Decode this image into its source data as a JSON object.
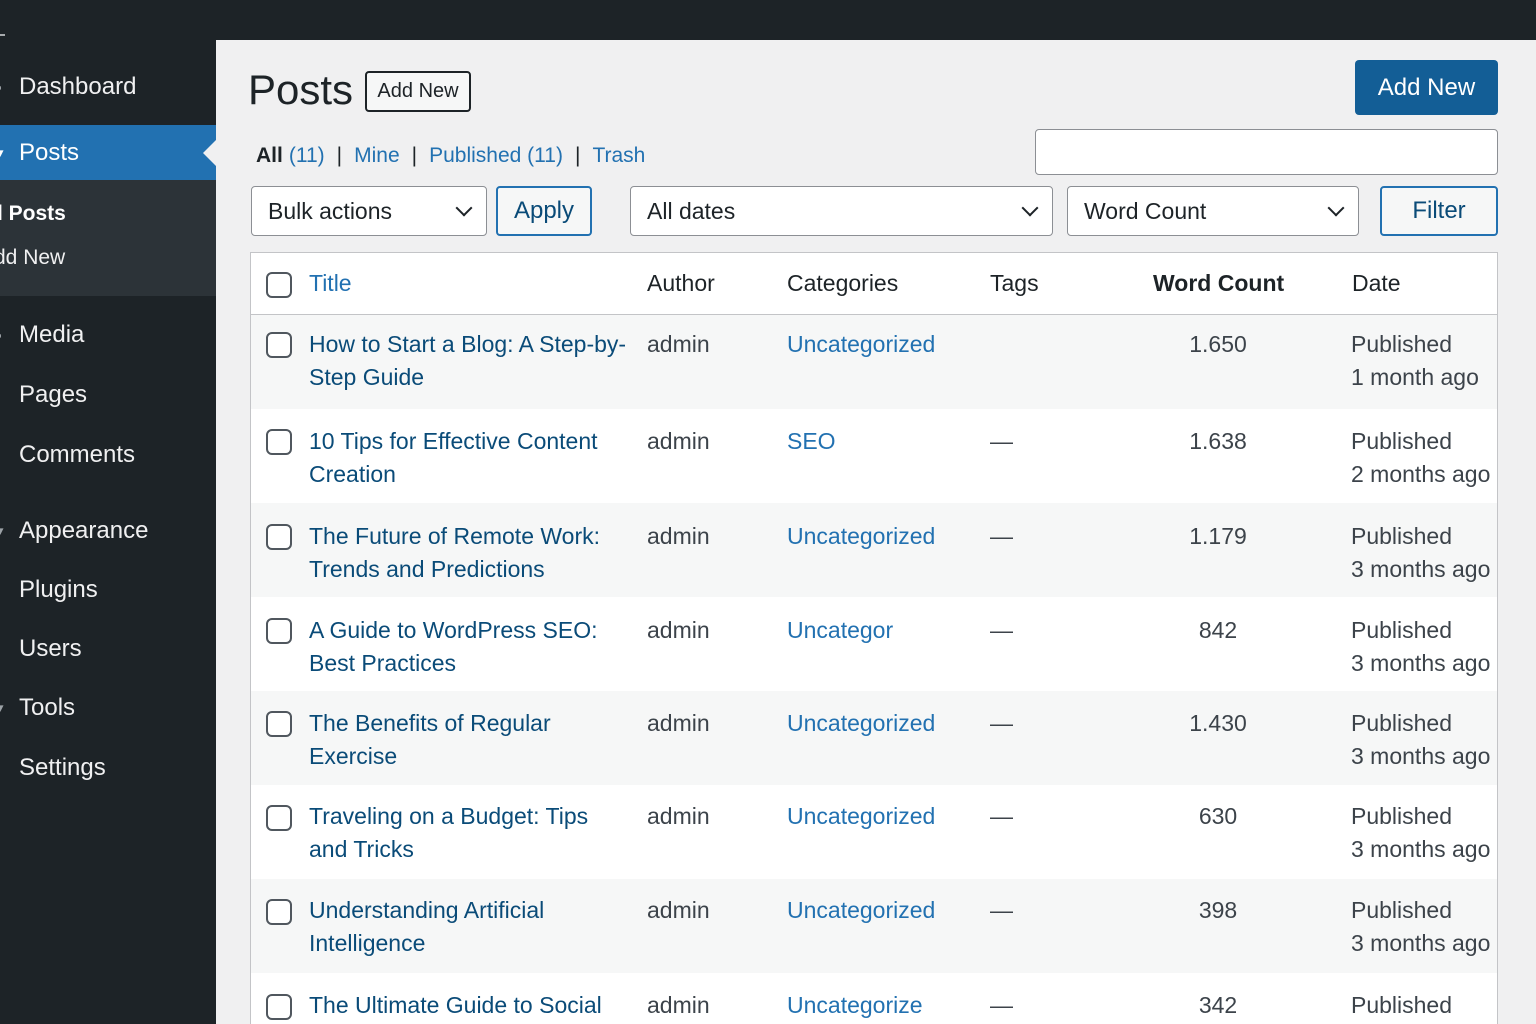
{
  "sidebar": {
    "items": [
      {
        "label": "Dashboard",
        "icon": "dashboard-icon",
        "active": false
      },
      {
        "label": "Posts",
        "icon": "posts-icon",
        "active": true
      },
      {
        "label": "Media",
        "icon": "media-icon",
        "active": false
      },
      {
        "label": "Pages",
        "icon": "pages-icon",
        "active": false
      },
      {
        "label": "Comments",
        "icon": "comments-icon",
        "active": false
      },
      {
        "label": "Appearance",
        "icon": "appearance-icon",
        "active": false
      },
      {
        "label": "Plugins",
        "icon": "plugins-icon",
        "active": false
      },
      {
        "label": "Users",
        "icon": "users-icon",
        "active": false
      },
      {
        "label": "Tools",
        "icon": "tools-icon",
        "active": false
      },
      {
        "label": "Settings",
        "icon": "settings-icon",
        "active": false
      }
    ],
    "submenu": [
      "l Posts",
      "dd New"
    ]
  },
  "header": {
    "title": "Posts",
    "add_new_small": "Add New",
    "add_new_primary": "Add New"
  },
  "views": {
    "all_label": "All",
    "all_count": "(11)",
    "mine": "Mine",
    "published": "Published (11)",
    "trash": "Trash",
    "separator": "|"
  },
  "search": {
    "value": "",
    "placeholder": ""
  },
  "filters": {
    "bulk_actions": "Bulk actions",
    "apply": "Apply",
    "dates": "All dates",
    "word_count": "Word Count",
    "filter": "Filter"
  },
  "table": {
    "columns": {
      "title": "Title",
      "author": "Author",
      "categories": "Categories",
      "tags": "Tags",
      "word_count": "Word Count",
      "date": "Date"
    },
    "rows": [
      {
        "title": "How to Start a Blog: A Step-by-Step Guide",
        "author": "admin",
        "category": "Uncategorized",
        "tags": "",
        "word_count": "1.650",
        "status": "Published",
        "date": "1 month ago"
      },
      {
        "title": "10 Tips for Effective Content Creation",
        "author": "admin",
        "category": "SEO",
        "tags": "—",
        "word_count": "1.638",
        "status": "Published",
        "date": "2 months ago"
      },
      {
        "title": "The Future of Remote Work: Trends and Predictions",
        "author": "admin",
        "category": "Uncategorized",
        "tags": "—",
        "word_count": "1.179",
        "status": "Published",
        "date": "3 months ago"
      },
      {
        "title": "A Guide to WordPress SEO: Best Practices",
        "author": "admin",
        "category": "Uncategor",
        "tags": "—",
        "word_count": "842",
        "status": "Published",
        "date": "3 months ago"
      },
      {
        "title": "The Benefits of Regular Exercise",
        "author": "admin",
        "category": "Uncategorized",
        "tags": "—",
        "word_count": "1.430",
        "status": "Published",
        "date": "3 months ago"
      },
      {
        "title": "Traveling on a Budget: Tips and Tricks",
        "author": "admin",
        "category": "Uncategorized",
        "tags": "—",
        "word_count": "630",
        "status": "Published",
        "date": "3 months ago"
      },
      {
        "title": "Understanding Artificial Intelligence",
        "author": "admin",
        "category": "Uncategorized",
        "tags": "—",
        "word_count": "398",
        "status": "Published",
        "date": "3 months ago"
      },
      {
        "title": "The Ultimate Guide to Social",
        "author": "admin",
        "category": "Uncategorize",
        "tags": "—",
        "word_count": "342",
        "status": "Published",
        "date": ""
      }
    ]
  },
  "colors": {
    "sidebar_bg": "#1d2327",
    "accent": "#2271b1",
    "primary_button": "#135e96",
    "page_bg": "#f0f0f1"
  }
}
